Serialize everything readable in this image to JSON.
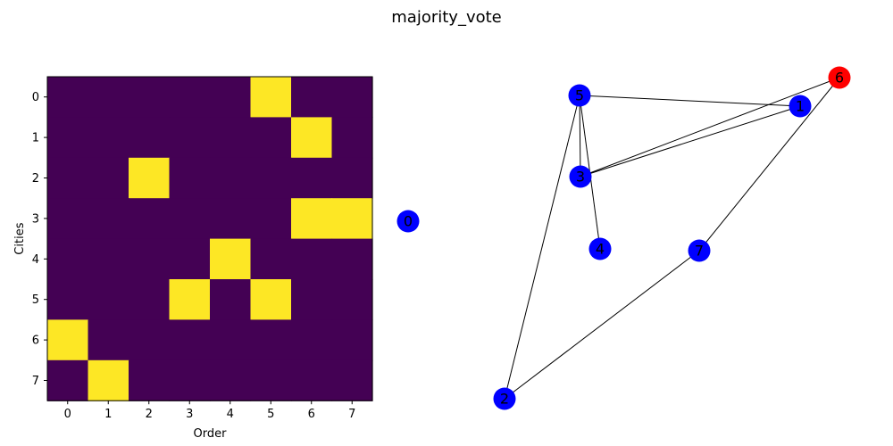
{
  "figure": {
    "title": "majority_vote"
  },
  "chart_data": [
    {
      "type": "heatmap",
      "xlabel": "Order",
      "ylabel": "Cities",
      "x_ticks": [
        "0",
        "1",
        "2",
        "3",
        "4",
        "5",
        "6",
        "7"
      ],
      "y_ticks": [
        "0",
        "1",
        "2",
        "3",
        "4",
        "5",
        "6",
        "7"
      ],
      "colors": {
        "low": "#440154",
        "high": "#fde725"
      },
      "values": [
        [
          0,
          0,
          0,
          0,
          0,
          1,
          0,
          0
        ],
        [
          0,
          0,
          0,
          0,
          0,
          0,
          1,
          0
        ],
        [
          0,
          0,
          1,
          0,
          0,
          0,
          0,
          0
        ],
        [
          0,
          0,
          0,
          0,
          0,
          0,
          1,
          1
        ],
        [
          0,
          0,
          0,
          0,
          1,
          0,
          0,
          0
        ],
        [
          0,
          0,
          0,
          1,
          0,
          1,
          0,
          0
        ],
        [
          1,
          0,
          0,
          0,
          0,
          0,
          0,
          0
        ],
        [
          0,
          1,
          0,
          0,
          0,
          0,
          0,
          0
        ]
      ]
    },
    {
      "type": "network",
      "colors": {
        "node": "#0000ff",
        "highlight": "#ff0000",
        "edge": "#000000"
      },
      "nodes": [
        {
          "id": "0",
          "highlight": false
        },
        {
          "id": "1",
          "highlight": false
        },
        {
          "id": "2",
          "highlight": false
        },
        {
          "id": "3",
          "highlight": false
        },
        {
          "id": "4",
          "highlight": false
        },
        {
          "id": "5",
          "highlight": false
        },
        {
          "id": "6",
          "highlight": true
        },
        {
          "id": "7",
          "highlight": false
        }
      ],
      "edges": [
        [
          "5",
          "1"
        ],
        [
          "5",
          "3"
        ],
        [
          "5",
          "4"
        ],
        [
          "5",
          "2"
        ],
        [
          "3",
          "1"
        ],
        [
          "3",
          "6"
        ],
        [
          "6",
          "7"
        ],
        [
          "7",
          "2"
        ]
      ]
    }
  ]
}
